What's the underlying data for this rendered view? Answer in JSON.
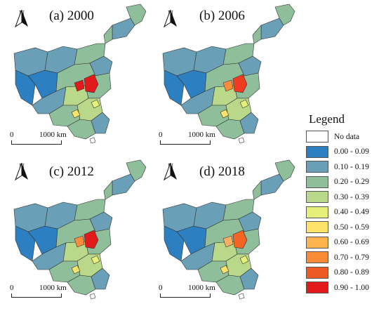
{
  "panels": [
    {
      "title": "(a) 2000",
      "north": "N",
      "scale_zero": "0",
      "scale_dist": "1000 km",
      "hotspot": "#e31a1c",
      "secondary": "#e31a1c"
    },
    {
      "title": "(b) 2006",
      "north": "N",
      "scale_zero": "0",
      "scale_dist": "1000 km",
      "hotspot": "#f03b20",
      "secondary": "#fd8d3c"
    },
    {
      "title": "(c) 2012",
      "north": "N",
      "scale_zero": "0",
      "scale_dist": "1000 km",
      "hotspot": "#e31a1c",
      "secondary": "#fd8d3c"
    },
    {
      "title": "(d) 2018",
      "north": "N",
      "scale_zero": "0",
      "scale_dist": "1000 km",
      "hotspot": "#f26522",
      "secondary": "#fdae61"
    }
  ],
  "legend": {
    "title": "Legend",
    "items": [
      {
        "label": "No data",
        "color": "#ffffff"
      },
      {
        "label": "0.00 - 0.09",
        "color": "#2c7fc0"
      },
      {
        "label": "0.10 - 0.19",
        "color": "#6a9fb8"
      },
      {
        "label": "0.20 - 0.29",
        "color": "#8fbf9a"
      },
      {
        "label": "0.30 - 0.39",
        "color": "#b9d88a"
      },
      {
        "label": "0.40 - 0.49",
        "color": "#e6ef7a"
      },
      {
        "label": "0.50 - 0.59",
        "color": "#fde36a"
      },
      {
        "label": "0.60 - 0.69",
        "color": "#fdb44e"
      },
      {
        "label": "0.70 - 0.79",
        "color": "#f98a36"
      },
      {
        "label": "0.80 - 0.89",
        "color": "#ee5a24"
      },
      {
        "label": "0.90 - 1.00",
        "color": "#e31a1c"
      }
    ]
  }
}
